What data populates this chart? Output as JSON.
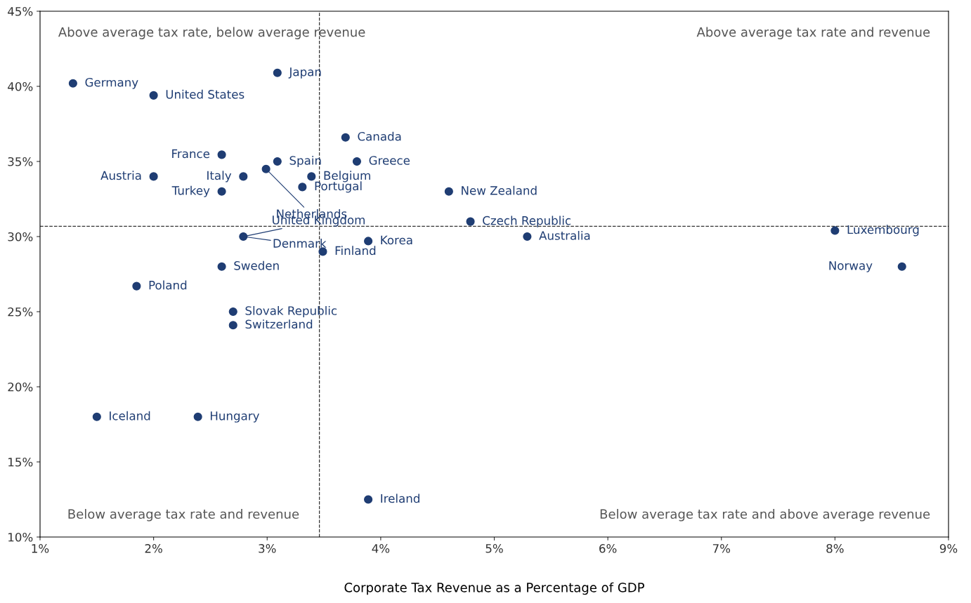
{
  "chart_data": {
    "type": "scatter",
    "xlabel": "Corporate Tax Revenue as a Percentage of GDP",
    "x": [
      1.29,
      2.0,
      3.09,
      3.69,
      2.6,
      3.09,
      3.79,
      2.0,
      2.79,
      2.99,
      3.39,
      3.31,
      2.6,
      4.6,
      4.79,
      2.79,
      8.0,
      5.29,
      3.89,
      3.49,
      8.59,
      2.6,
      1.85,
      2.7,
      2.7,
      1.5,
      2.39,
      3.89
    ],
    "values": [
      40.2,
      39.4,
      40.9,
      36.6,
      35.45,
      35.0,
      35.0,
      34.0,
      34.0,
      34.5,
      34.0,
      33.3,
      33.0,
      33.0,
      31.0,
      30.0,
      30.4,
      30.0,
      29.7,
      29.0,
      28.0,
      28.0,
      26.7,
      25.0,
      24.1,
      18.0,
      18.0,
      12.5
    ],
    "color": "#1f3d73",
    "marker": "circle",
    "grid": false,
    "legend": false,
    "xlim": [
      1,
      9
    ],
    "xticks": [
      {
        "value": 1,
        "label": "1%"
      },
      {
        "value": 2,
        "label": "2%"
      },
      {
        "value": 3,
        "label": "3%"
      },
      {
        "value": 4,
        "label": "4%"
      },
      {
        "value": 5,
        "label": "5%"
      },
      {
        "value": 6,
        "label": "6%"
      },
      {
        "value": 7,
        "label": "7%"
      },
      {
        "value": 8,
        "label": "8%"
      },
      {
        "value": 9,
        "label": "9%"
      }
    ],
    "ylim": [
      10,
      45
    ],
    "yticks": [
      {
        "value": 10,
        "label": "10%"
      },
      {
        "value": 15,
        "label": "15%"
      },
      {
        "value": 20,
        "label": "20%"
      },
      {
        "value": 25,
        "label": "25%"
      },
      {
        "value": 30,
        "label": "30%"
      },
      {
        "value": 35,
        "label": "35%"
      },
      {
        "value": 40,
        "label": "40%"
      },
      {
        "value": 45,
        "label": "45%"
      }
    ],
    "ref_lines": [
      {
        "axis": "x",
        "value": 3.46,
        "line_style": "dashed",
        "color": "#333333"
      },
      {
        "axis": "y",
        "value": 30.68,
        "line_style": "dashed",
        "color": "#333333"
      }
    ],
    "annotations": [
      "Above average tax rate, below average revenue",
      "Above average tax rate and revenue",
      "Below average tax rate and revenue",
      "Below average tax rate and above average revenue",
      {
        "text": "Germany",
        "x": 1.29,
        "y": 40.2
      },
      {
        "text": "United States",
        "x": 2.0,
        "y": 39.4
      },
      {
        "text": "Japan",
        "x": 3.09,
        "y": 40.9
      },
      {
        "text": "Canada",
        "x": 3.69,
        "y": 36.6
      },
      {
        "text": "France",
        "x": 2.6,
        "y": 35.45
      },
      {
        "text": "Spain",
        "x": 3.09,
        "y": 35.0
      },
      {
        "text": "Greece",
        "x": 3.79,
        "y": 35.0
      },
      {
        "text": "Austria",
        "x": 2.0,
        "y": 34.0
      },
      {
        "text": "Italy",
        "x": 2.79,
        "y": 34.0
      },
      {
        "text": "Netherlands",
        "x": 2.99,
        "y": 34.5
      },
      {
        "text": "Belgium",
        "x": 3.39,
        "y": 34.0
      },
      {
        "text": "Portugal",
        "x": 3.31,
        "y": 33.3
      },
      {
        "text": "Turkey",
        "x": 2.6,
        "y": 33.0
      },
      {
        "text": "New Zealand",
        "x": 4.6,
        "y": 33.0
      },
      {
        "text": "Czech Republic",
        "x": 4.79,
        "y": 31.0
      },
      {
        "text": "United Kingdom",
        "x": 2.79,
        "y": 30.0
      },
      {
        "text": "Denmark",
        "x": 2.79,
        "y": 30.0
      },
      {
        "text": "Luxembourg",
        "x": 8.0,
        "y": 30.4
      },
      {
        "text": "Australia",
        "x": 5.29,
        "y": 30.0
      },
      {
        "text": "Korea",
        "x": 3.89,
        "y": 29.7
      },
      {
        "text": "Finland",
        "x": 3.49,
        "y": 29.0
      },
      {
        "text": "Norway",
        "x": 8.59,
        "y": 28.0
      },
      {
        "text": "Sweden",
        "x": 2.6,
        "y": 28.0
      },
      {
        "text": "Poland",
        "x": 1.85,
        "y": 26.7
      },
      {
        "text": "Slovak Republic",
        "x": 2.7,
        "y": 25.0
      },
      {
        "text": "Switzerland",
        "x": 2.7,
        "y": 24.1
      },
      {
        "text": "Iceland",
        "x": 1.5,
        "y": 18.0
      },
      {
        "text": "Hungary",
        "x": 2.39,
        "y": 18.0
      },
      {
        "text": "Ireland",
        "x": 3.89,
        "y": 12.5
      }
    ]
  }
}
